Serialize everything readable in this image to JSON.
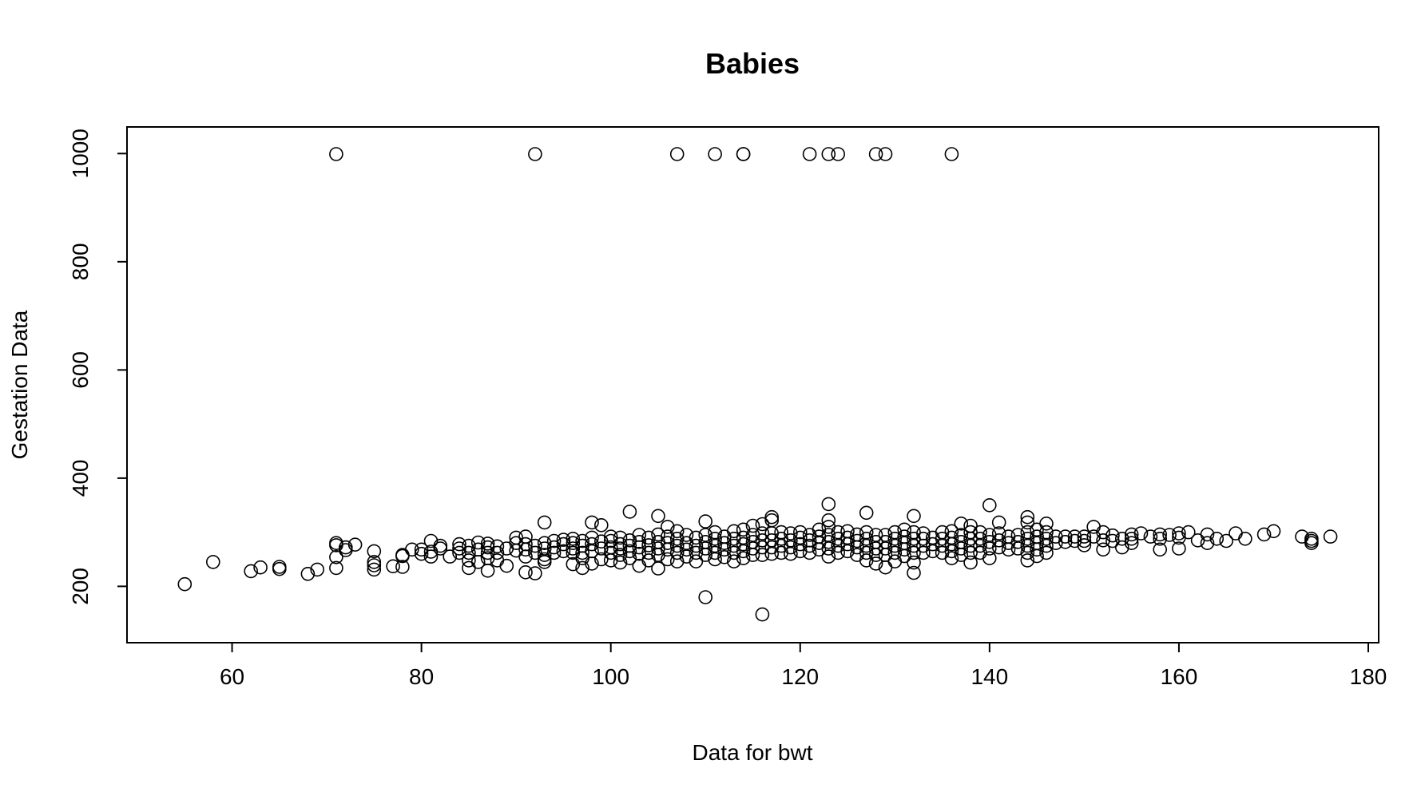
{
  "chart_data": {
    "type": "scatter",
    "title": "Babies",
    "xlabel": "Data for bwt",
    "ylabel": "Gestation Data",
    "xlim": [
      50,
      180
    ],
    "ylim": [
      115,
      1030
    ],
    "xticks": [
      60,
      80,
      100,
      120,
      140,
      160,
      180
    ],
    "yticks": [
      200,
      400,
      600,
      800,
      1000
    ],
    "grid": false,
    "legend": "none",
    "marker": "open-circle",
    "points": [
      [
        71,
        999
      ],
      [
        92,
        999
      ],
      [
        107,
        999
      ],
      [
        111,
        999
      ],
      [
        114,
        999
      ],
      [
        114,
        999
      ],
      [
        121,
        999
      ],
      [
        123,
        999
      ],
      [
        124,
        999
      ],
      [
        128,
        999
      ],
      [
        129,
        999
      ],
      [
        136,
        999
      ],
      [
        55,
        204
      ],
      [
        58,
        245
      ],
      [
        62,
        228
      ],
      [
        63,
        235
      ],
      [
        65,
        232
      ],
      [
        65,
        236
      ],
      [
        68,
        223
      ],
      [
        69,
        231
      ],
      [
        71,
        234
      ],
      [
        71,
        254
      ],
      [
        71,
        276
      ],
      [
        71,
        280
      ],
      [
        72,
        267
      ],
      [
        72,
        272
      ],
      [
        73,
        277
      ],
      [
        75,
        231
      ],
      [
        75,
        239
      ],
      [
        75,
        245
      ],
      [
        75,
        265
      ],
      [
        77,
        237
      ],
      [
        78,
        236
      ],
      [
        78,
        256
      ],
      [
        78,
        258
      ],
      [
        79,
        268
      ],
      [
        80,
        260
      ],
      [
        80,
        268
      ],
      [
        81,
        255
      ],
      [
        81,
        264
      ],
      [
        81,
        284
      ],
      [
        82,
        270
      ],
      [
        82,
        275
      ],
      [
        83,
        255
      ],
      [
        84,
        262
      ],
      [
        84,
        270
      ],
      [
        84,
        278
      ],
      [
        85,
        234
      ],
      [
        85,
        248
      ],
      [
        85,
        262
      ],
      [
        85,
        275
      ],
      [
        86,
        245
      ],
      [
        86,
        268
      ],
      [
        86,
        281
      ],
      [
        87,
        229
      ],
      [
        87,
        252
      ],
      [
        87,
        262
      ],
      [
        87,
        272
      ],
      [
        87,
        279
      ],
      [
        88,
        248
      ],
      [
        88,
        262
      ],
      [
        88,
        274
      ],
      [
        89,
        238
      ],
      [
        89,
        270
      ],
      [
        90,
        266
      ],
      [
        90,
        280
      ],
      [
        90,
        290
      ],
      [
        91,
        226
      ],
      [
        91,
        255
      ],
      [
        91,
        268
      ],
      [
        91,
        278
      ],
      [
        91,
        292
      ],
      [
        92,
        224
      ],
      [
        92,
        262
      ],
      [
        92,
        275
      ],
      [
        93,
        245
      ],
      [
        93,
        250
      ],
      [
        93,
        258
      ],
      [
        93,
        270
      ],
      [
        93,
        280
      ],
      [
        93,
        318
      ],
      [
        94,
        262
      ],
      [
        94,
        272
      ],
      [
        94,
        284
      ],
      [
        95,
        265
      ],
      [
        95,
        278
      ],
      [
        95,
        286
      ],
      [
        96,
        241
      ],
      [
        96,
        262
      ],
      [
        96,
        270
      ],
      [
        96,
        280
      ],
      [
        96,
        288
      ],
      [
        97,
        234
      ],
      [
        97,
        252
      ],
      [
        97,
        262
      ],
      [
        97,
        275
      ],
      [
        97,
        284
      ],
      [
        98,
        242
      ],
      [
        98,
        265
      ],
      [
        98,
        278
      ],
      [
        98,
        290
      ],
      [
        98,
        318
      ],
      [
        99,
        250
      ],
      [
        99,
        270
      ],
      [
        99,
        283
      ],
      [
        99,
        313
      ],
      [
        100,
        248
      ],
      [
        100,
        262
      ],
      [
        100,
        272
      ],
      [
        100,
        284
      ],
      [
        100,
        292
      ],
      [
        101,
        244
      ],
      [
        101,
        258
      ],
      [
        101,
        270
      ],
      [
        101,
        278
      ],
      [
        101,
        290
      ],
      [
        102,
        252
      ],
      [
        102,
        265
      ],
      [
        102,
        275
      ],
      [
        102,
        285
      ],
      [
        102,
        338
      ],
      [
        103,
        238
      ],
      [
        103,
        260
      ],
      [
        103,
        272
      ],
      [
        103,
        282
      ],
      [
        103,
        295
      ],
      [
        104,
        248
      ],
      [
        104,
        262
      ],
      [
        104,
        276
      ],
      [
        104,
        290
      ],
      [
        105,
        233
      ],
      [
        105,
        258
      ],
      [
        105,
        270
      ],
      [
        105,
        282
      ],
      [
        105,
        296
      ],
      [
        105,
        330
      ],
      [
        106,
        250
      ],
      [
        106,
        268
      ],
      [
        106,
        280
      ],
      [
        106,
        292
      ],
      [
        106,
        310
      ],
      [
        107,
        246
      ],
      [
        107,
        262
      ],
      [
        107,
        275
      ],
      [
        107,
        288
      ],
      [
        107,
        302
      ],
      [
        108,
        255
      ],
      [
        108,
        268
      ],
      [
        108,
        280
      ],
      [
        108,
        295
      ],
      [
        109,
        246
      ],
      [
        109,
        262
      ],
      [
        109,
        275
      ],
      [
        109,
        290
      ],
      [
        110,
        180
      ],
      [
        110,
        258
      ],
      [
        110,
        270
      ],
      [
        110,
        282
      ],
      [
        110,
        295
      ],
      [
        110,
        320
      ],
      [
        111,
        250
      ],
      [
        111,
        262
      ],
      [
        111,
        275
      ],
      [
        111,
        288
      ],
      [
        111,
        300
      ],
      [
        112,
        254
      ],
      [
        112,
        268
      ],
      [
        112,
        280
      ],
      [
        112,
        292
      ],
      [
        113,
        246
      ],
      [
        113,
        262
      ],
      [
        113,
        275
      ],
      [
        113,
        288
      ],
      [
        113,
        302
      ],
      [
        114,
        252
      ],
      [
        114,
        265
      ],
      [
        114,
        278
      ],
      [
        114,
        290
      ],
      [
        114,
        305
      ],
      [
        115,
        258
      ],
      [
        115,
        270
      ],
      [
        115,
        282
      ],
      [
        115,
        295
      ],
      [
        115,
        312
      ],
      [
        116,
        148
      ],
      [
        116,
        258
      ],
      [
        116,
        272
      ],
      [
        116,
        285
      ],
      [
        116,
        298
      ],
      [
        116,
        315
      ],
      [
        117,
        260
      ],
      [
        117,
        272
      ],
      [
        117,
        285
      ],
      [
        117,
        298
      ],
      [
        117,
        322
      ],
      [
        117,
        328
      ],
      [
        118,
        262
      ],
      [
        118,
        275
      ],
      [
        118,
        288
      ],
      [
        118,
        300
      ],
      [
        119,
        260
      ],
      [
        119,
        272
      ],
      [
        119,
        285
      ],
      [
        119,
        298
      ],
      [
        120,
        265
      ],
      [
        120,
        278
      ],
      [
        120,
        290
      ],
      [
        120,
        300
      ],
      [
        121,
        262
      ],
      [
        121,
        275
      ],
      [
        121,
        285
      ],
      [
        121,
        295
      ],
      [
        122,
        268
      ],
      [
        122,
        280
      ],
      [
        122,
        292
      ],
      [
        122,
        305
      ],
      [
        123,
        255
      ],
      [
        123,
        270
      ],
      [
        123,
        282
      ],
      [
        123,
        295
      ],
      [
        123,
        310
      ],
      [
        123,
        322
      ],
      [
        123,
        352
      ],
      [
        124,
        262
      ],
      [
        124,
        275
      ],
      [
        124,
        288
      ],
      [
        124,
        300
      ],
      [
        125,
        265
      ],
      [
        125,
        278
      ],
      [
        125,
        290
      ],
      [
        125,
        302
      ],
      [
        126,
        258
      ],
      [
        126,
        272
      ],
      [
        126,
        284
      ],
      [
        126,
        296
      ],
      [
        127,
        248
      ],
      [
        127,
        262
      ],
      [
        127,
        275
      ],
      [
        127,
        288
      ],
      [
        127,
        300
      ],
      [
        127,
        336
      ],
      [
        128,
        242
      ],
      [
        128,
        258
      ],
      [
        128,
        270
      ],
      [
        128,
        282
      ],
      [
        128,
        295
      ],
      [
        129,
        235
      ],
      [
        129,
        258
      ],
      [
        129,
        270
      ],
      [
        129,
        282
      ],
      [
        129,
        295
      ],
      [
        130,
        246
      ],
      [
        130,
        262
      ],
      [
        130,
        275
      ],
      [
        130,
        288
      ],
      [
        130,
        300
      ],
      [
        131,
        256
      ],
      [
        131,
        268
      ],
      [
        131,
        280
      ],
      [
        131,
        292
      ],
      [
        131,
        305
      ],
      [
        132,
        225
      ],
      [
        132,
        244
      ],
      [
        132,
        262
      ],
      [
        132,
        275
      ],
      [
        132,
        288
      ],
      [
        132,
        300
      ],
      [
        132,
        330
      ],
      [
        133,
        262
      ],
      [
        133,
        275
      ],
      [
        133,
        288
      ],
      [
        133,
        298
      ],
      [
        134,
        265
      ],
      [
        134,
        278
      ],
      [
        134,
        290
      ],
      [
        135,
        262
      ],
      [
        135,
        275
      ],
      [
        135,
        288
      ],
      [
        135,
        300
      ],
      [
        136,
        252
      ],
      [
        136,
        265
      ],
      [
        136,
        278
      ],
      [
        136,
        290
      ],
      [
        136,
        302
      ],
      [
        137,
        258
      ],
      [
        137,
        270
      ],
      [
        137,
        282
      ],
      [
        137,
        295
      ],
      [
        137,
        316
      ],
      [
        138,
        244
      ],
      [
        138,
        262
      ],
      [
        138,
        275
      ],
      [
        138,
        288
      ],
      [
        138,
        300
      ],
      [
        138,
        312
      ],
      [
        139,
        262
      ],
      [
        139,
        275
      ],
      [
        139,
        288
      ],
      [
        139,
        300
      ],
      [
        140,
        252
      ],
      [
        140,
        270
      ],
      [
        140,
        282
      ],
      [
        140,
        295
      ],
      [
        140,
        350
      ],
      [
        141,
        272
      ],
      [
        141,
        285
      ],
      [
        141,
        298
      ],
      [
        141,
        318
      ],
      [
        142,
        268
      ],
      [
        142,
        280
      ],
      [
        142,
        292
      ],
      [
        143,
        270
      ],
      [
        143,
        282
      ],
      [
        143,
        295
      ],
      [
        144,
        248
      ],
      [
        144,
        262
      ],
      [
        144,
        275
      ],
      [
        144,
        288
      ],
      [
        144,
        300
      ],
      [
        144,
        318
      ],
      [
        144,
        328
      ],
      [
        145,
        256
      ],
      [
        145,
        268
      ],
      [
        145,
        280
      ],
      [
        145,
        292
      ],
      [
        145,
        305
      ],
      [
        146,
        262
      ],
      [
        146,
        275
      ],
      [
        146,
        288
      ],
      [
        146,
        300
      ],
      [
        146,
        316
      ],
      [
        147,
        280
      ],
      [
        147,
        292
      ],
      [
        148,
        282
      ],
      [
        148,
        292
      ],
      [
        149,
        284
      ],
      [
        149,
        292
      ],
      [
        150,
        276
      ],
      [
        150,
        284
      ],
      [
        150,
        292
      ],
      [
        151,
        292
      ],
      [
        151,
        310
      ],
      [
        152,
        268
      ],
      [
        152,
        285
      ],
      [
        152,
        300
      ],
      [
        153,
        284
      ],
      [
        153,
        294
      ],
      [
        154,
        272
      ],
      [
        154,
        288
      ],
      [
        155,
        280
      ],
      [
        155,
        288
      ],
      [
        155,
        296
      ],
      [
        156,
        298
      ],
      [
        157,
        292
      ],
      [
        158,
        268
      ],
      [
        158,
        288
      ],
      [
        158,
        296
      ],
      [
        159,
        295
      ],
      [
        160,
        270
      ],
      [
        160,
        290
      ],
      [
        160,
        298
      ],
      [
        161,
        300
      ],
      [
        162,
        285
      ],
      [
        163,
        280
      ],
      [
        163,
        296
      ],
      [
        164,
        288
      ],
      [
        165,
        284
      ],
      [
        166,
        298
      ],
      [
        167,
        288
      ],
      [
        169,
        296
      ],
      [
        170,
        302
      ],
      [
        173,
        292
      ],
      [
        174,
        280
      ],
      [
        174,
        284
      ],
      [
        174,
        288
      ],
      [
        176,
        292
      ]
    ]
  }
}
